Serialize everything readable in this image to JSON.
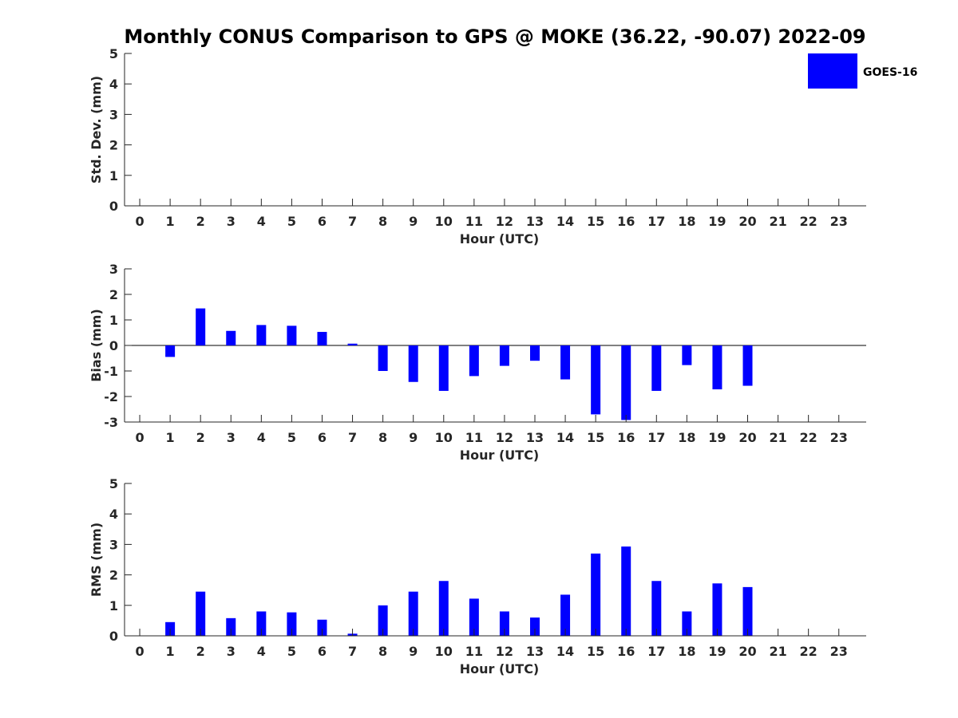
{
  "title": "Monthly CONUS Comparison to GPS @ MOKE (36.22, -90.07) 2022-09",
  "legend": {
    "label": "GOES-16",
    "color": "#0000ff",
    "placement": "top-right"
  },
  "chart_data": [
    {
      "type": "bar",
      "name": "stddev",
      "xlabel": "Hour (UTC)",
      "ylabel": "Std. Dev. (mm)",
      "x": [
        0,
        1,
        2,
        3,
        4,
        5,
        6,
        7,
        8,
        9,
        10,
        11,
        12,
        13,
        14,
        15,
        16,
        17,
        18,
        19,
        20,
        21,
        22,
        23
      ],
      "values": [
        null,
        null,
        null,
        null,
        null,
        null,
        null,
        null,
        null,
        null,
        null,
        null,
        null,
        null,
        null,
        null,
        null,
        null,
        null,
        null,
        null,
        null,
        null,
        null
      ],
      "ylim": [
        0,
        5
      ],
      "yticks": [
        0,
        1,
        2,
        3,
        4,
        5
      ],
      "xlim": [
        -0.5,
        23.9
      ],
      "grid": false
    },
    {
      "type": "bar",
      "name": "bias",
      "xlabel": "Hour (UTC)",
      "ylabel": "Bias (mm)",
      "x": [
        0,
        1,
        2,
        3,
        4,
        5,
        6,
        7,
        8,
        9,
        10,
        11,
        12,
        13,
        14,
        15,
        16,
        17,
        18,
        19,
        20,
        21,
        22,
        23
      ],
      "values": [
        null,
        -0.45,
        1.45,
        0.57,
        0.8,
        0.77,
        0.53,
        0.07,
        -1.0,
        -1.43,
        -1.78,
        -1.2,
        -0.8,
        -0.6,
        -1.33,
        -2.7,
        -2.92,
        -1.78,
        -0.77,
        -1.72,
        -1.58,
        null,
        null,
        null
      ],
      "ylim": [
        -3,
        3
      ],
      "yticks": [
        -3,
        -2,
        -1,
        0,
        1,
        2,
        3
      ],
      "xlim": [
        -0.5,
        23.9
      ],
      "grid": false
    },
    {
      "type": "bar",
      "name": "rms",
      "xlabel": "Hour (UTC)",
      "ylabel": "RMS (mm)",
      "x": [
        0,
        1,
        2,
        3,
        4,
        5,
        6,
        7,
        8,
        9,
        10,
        11,
        12,
        13,
        14,
        15,
        16,
        17,
        18,
        19,
        20,
        21,
        22,
        23
      ],
      "values": [
        null,
        0.45,
        1.45,
        0.58,
        0.8,
        0.77,
        0.53,
        0.07,
        1.0,
        1.45,
        1.8,
        1.22,
        0.8,
        0.6,
        1.35,
        2.7,
        2.93,
        1.8,
        0.8,
        1.72,
        1.6,
        null,
        null,
        null
      ],
      "ylim": [
        0,
        5
      ],
      "yticks": [
        0,
        1,
        2,
        3,
        4,
        5
      ],
      "xlim": [
        -0.5,
        23.9
      ],
      "grid": false
    }
  ]
}
